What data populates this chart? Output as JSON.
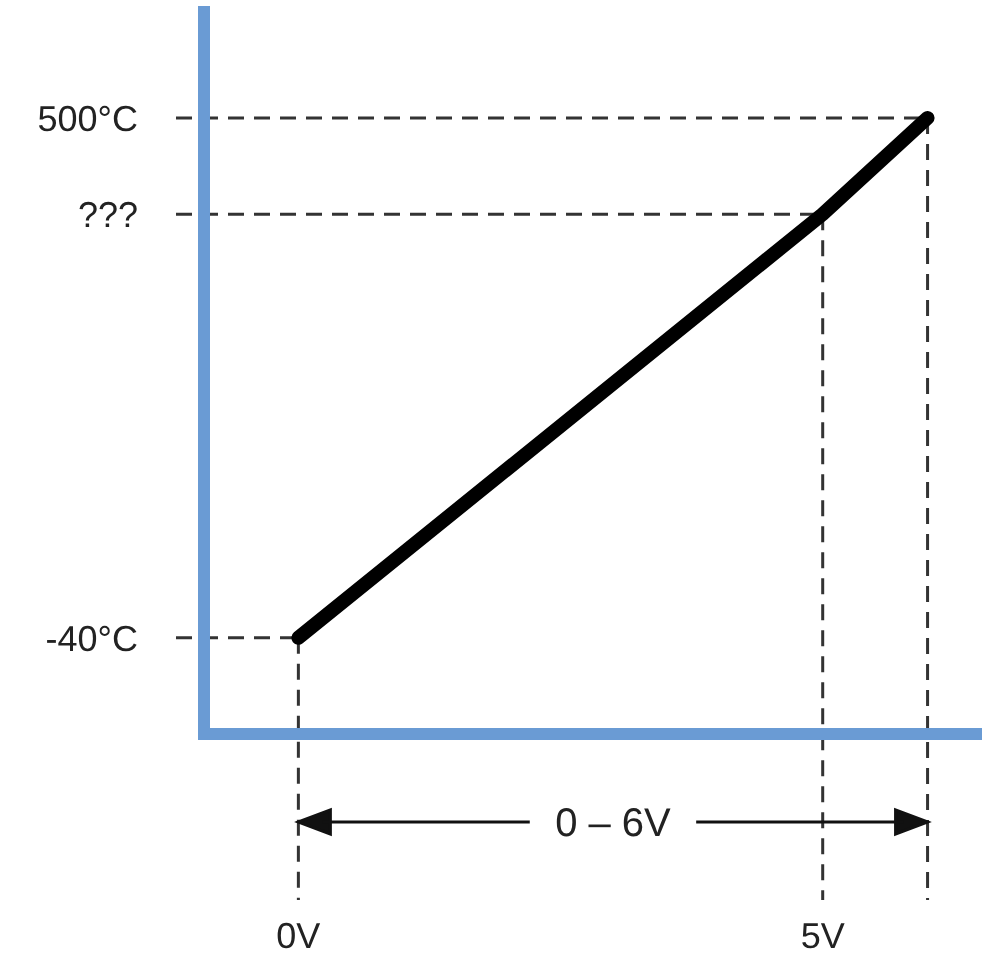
{
  "chart_data": {
    "type": "line",
    "x": [
      0,
      5,
      6
    ],
    "series": [
      {
        "color": "#000000",
        "values": [
          -40,
          400,
          500
        ]
      }
    ],
    "xlim": [
      -0.9,
      6.5
    ],
    "ylim": [
      -140,
      610
    ],
    "xticks": [
      {
        "value": 0,
        "label": "0V"
      },
      {
        "value": 5,
        "label": "5V"
      }
    ],
    "yticks": [
      {
        "value": -40,
        "label": "-40°C"
      },
      {
        "value": 400,
        "label": "???"
      },
      {
        "value": 500,
        "label": "500°C"
      }
    ],
    "marker": "none",
    "line_style": "solid",
    "ref_lines": [
      {
        "axis": "y",
        "value": 500,
        "color": "#333333",
        "line_style": "dashed"
      },
      {
        "axis": "y",
        "value": 400,
        "color": "#333333",
        "line_style": "dashed"
      },
      {
        "axis": "y",
        "value": -40,
        "color": "#333333",
        "line_style": "dashed"
      },
      {
        "axis": "x",
        "value": 0,
        "color": "#333333",
        "line_style": "dashed"
      },
      {
        "axis": "x",
        "value": 5,
        "color": "#333333",
        "line_style": "dashed"
      },
      {
        "axis": "x",
        "value": 6,
        "color": "#333333",
        "line_style": "dashed"
      }
    ],
    "annotations": [
      "0 – 6V"
    ]
  }
}
